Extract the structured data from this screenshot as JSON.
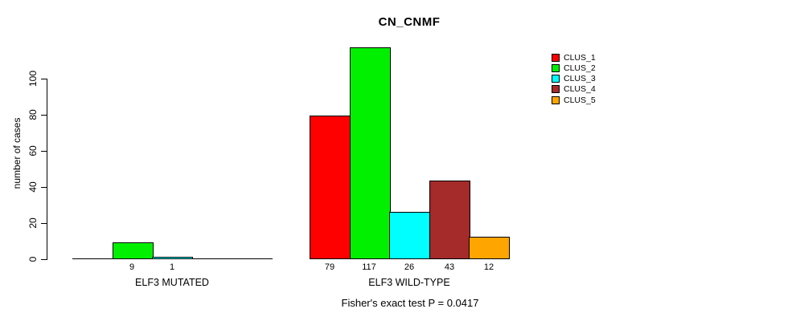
{
  "chart_data": {
    "type": "bar",
    "title": "CN_CNMF",
    "ylabel": "number of cases",
    "yticks": [
      0,
      20,
      40,
      60,
      80,
      100
    ],
    "ylim": [
      0,
      120
    ],
    "grid": false,
    "legend_position": "top-right",
    "series": [
      {
        "name": "CLUS_1",
        "color": "#FF0000"
      },
      {
        "name": "CLUS_2",
        "color": "#00F000"
      },
      {
        "name": "CLUS_3",
        "color": "#00FFFF"
      },
      {
        "name": "CLUS_4",
        "color": "#A52A2A"
      },
      {
        "name": "CLUS_5",
        "color": "#FFA500"
      }
    ],
    "groups": [
      {
        "label": "ELF3 MUTATED",
        "values": [
          0,
          9,
          1,
          0,
          0
        ]
      },
      {
        "label": "ELF3 WILD-TYPE",
        "values": [
          79,
          117,
          26,
          43,
          12
        ]
      }
    ],
    "footnote": "Fisher's exact test P = 0.0417"
  }
}
